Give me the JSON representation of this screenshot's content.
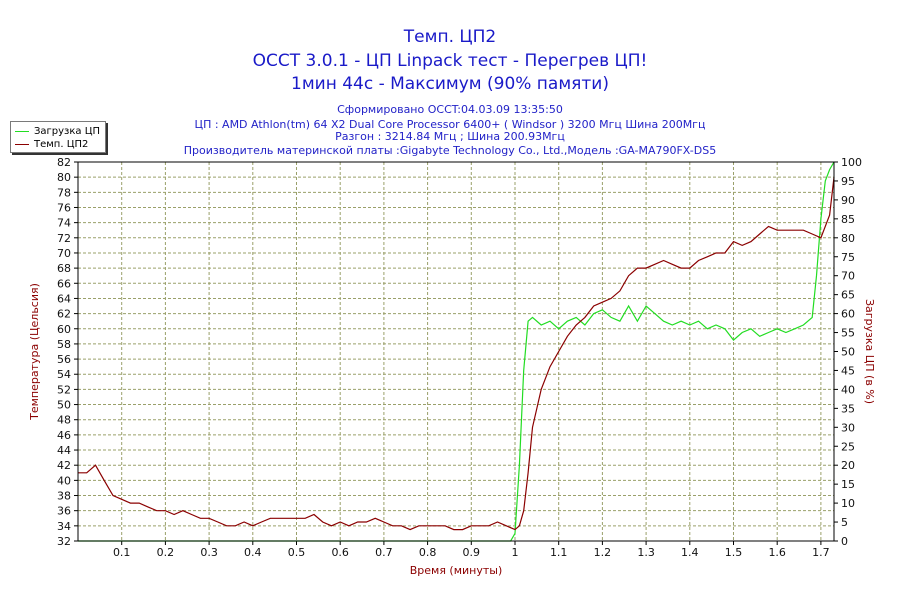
{
  "titles": {
    "line1": "Темп. ЦП2",
    "line2": "OCCT 3.0.1 - ЦП Linpack тест - Перегрев ЦП!",
    "line3": "1мин 44с - Максимум (90% памяти)"
  },
  "subtitles": {
    "generated": "Сформировано OCCT:04.03.09 13:35:50",
    "cpu": "ЦП : AMD Athlon(tm) 64 X2 Dual Core Processor 6400+ ( Windsor ) 3200 Мгц Шина 200Мгц",
    "overclock": "Разгон : 3214.84 Мгц ; Шина 200.93Мгц",
    "motherboard": "Производитель материнской платы :Gigabyte Technology Co., Ltd.,Модель :GA-MA790FX-DS5"
  },
  "colors": {
    "load": "#22dd22",
    "temp": "#8b0000",
    "grid": "#9aa06a",
    "title": "#1a1ac8",
    "axis_label": "#8b0000"
  },
  "chart_data": {
    "type": "line",
    "xlabel": "Время (минуты)",
    "ylabel_left": "Температура (Цельсия)",
    "ylabel_right": "Загрузка ЦП (в %)",
    "xlim": [
      0,
      1.73
    ],
    "ylim_left": [
      32,
      82
    ],
    "ylim_right": [
      0,
      100
    ],
    "x_ticks": [
      0.1,
      0.2,
      0.3,
      0.4,
      0.5,
      0.6,
      0.7,
      0.8,
      0.9,
      1,
      1.1,
      1.2,
      1.3,
      1.4,
      1.5,
      1.6,
      1.7
    ],
    "y_ticks_left": [
      32,
      34,
      36,
      38,
      40,
      42,
      44,
      46,
      48,
      50,
      52,
      54,
      56,
      58,
      60,
      62,
      64,
      66,
      68,
      70,
      72,
      74,
      76,
      78,
      80,
      82
    ],
    "y_ticks_right": [
      0,
      5,
      10,
      15,
      20,
      25,
      30,
      35,
      40,
      45,
      50,
      55,
      60,
      65,
      70,
      75,
      80,
      85,
      90,
      95,
      100
    ],
    "grid": true,
    "legend_position": "top-left",
    "series": [
      {
        "name": "Загрузка ЦП",
        "axis": "right",
        "points": [
          [
            0,
            0
          ],
          [
            0.99,
            0
          ],
          [
            1.0,
            2
          ],
          [
            1.01,
            20
          ],
          [
            1.02,
            45
          ],
          [
            1.03,
            58
          ],
          [
            1.04,
            59
          ],
          [
            1.06,
            57
          ],
          [
            1.08,
            58
          ],
          [
            1.1,
            56
          ],
          [
            1.12,
            58
          ],
          [
            1.14,
            59
          ],
          [
            1.16,
            57
          ],
          [
            1.18,
            60
          ],
          [
            1.2,
            61
          ],
          [
            1.22,
            59
          ],
          [
            1.24,
            58
          ],
          [
            1.26,
            62
          ],
          [
            1.28,
            58
          ],
          [
            1.3,
            62
          ],
          [
            1.32,
            60
          ],
          [
            1.34,
            58
          ],
          [
            1.36,
            57
          ],
          [
            1.38,
            58
          ],
          [
            1.4,
            57
          ],
          [
            1.42,
            58
          ],
          [
            1.44,
            56
          ],
          [
            1.46,
            57
          ],
          [
            1.48,
            56
          ],
          [
            1.5,
            53
          ],
          [
            1.52,
            55
          ],
          [
            1.54,
            56
          ],
          [
            1.56,
            54
          ],
          [
            1.58,
            55
          ],
          [
            1.6,
            56
          ],
          [
            1.62,
            55
          ],
          [
            1.64,
            56
          ],
          [
            1.66,
            57
          ],
          [
            1.68,
            59
          ],
          [
            1.69,
            70
          ],
          [
            1.7,
            85
          ],
          [
            1.71,
            95
          ],
          [
            1.72,
            98
          ],
          [
            1.73,
            100
          ]
        ]
      },
      {
        "name": "Темп. ЦП2",
        "axis": "left",
        "points": [
          [
            0,
            41
          ],
          [
            0.02,
            41
          ],
          [
            0.04,
            42
          ],
          [
            0.06,
            40
          ],
          [
            0.08,
            38
          ],
          [
            0.1,
            37.5
          ],
          [
            0.12,
            37
          ],
          [
            0.14,
            37
          ],
          [
            0.16,
            36.5
          ],
          [
            0.18,
            36
          ],
          [
            0.2,
            36
          ],
          [
            0.22,
            35.5
          ],
          [
            0.24,
            36
          ],
          [
            0.26,
            35.5
          ],
          [
            0.28,
            35
          ],
          [
            0.3,
            35
          ],
          [
            0.32,
            34.5
          ],
          [
            0.34,
            34
          ],
          [
            0.36,
            34
          ],
          [
            0.38,
            34.5
          ],
          [
            0.4,
            34
          ],
          [
            0.42,
            34.5
          ],
          [
            0.44,
            35
          ],
          [
            0.46,
            35
          ],
          [
            0.48,
            35
          ],
          [
            0.5,
            35
          ],
          [
            0.52,
            35
          ],
          [
            0.54,
            35.5
          ],
          [
            0.56,
            34.5
          ],
          [
            0.58,
            34
          ],
          [
            0.6,
            34.5
          ],
          [
            0.62,
            34
          ],
          [
            0.64,
            34.5
          ],
          [
            0.66,
            34.5
          ],
          [
            0.68,
            35
          ],
          [
            0.7,
            34.5
          ],
          [
            0.72,
            34
          ],
          [
            0.74,
            34
          ],
          [
            0.76,
            33.5
          ],
          [
            0.78,
            34
          ],
          [
            0.8,
            34
          ],
          [
            0.82,
            34
          ],
          [
            0.84,
            34
          ],
          [
            0.86,
            33.5
          ],
          [
            0.88,
            33.5
          ],
          [
            0.9,
            34
          ],
          [
            0.92,
            34
          ],
          [
            0.94,
            34
          ],
          [
            0.96,
            34.5
          ],
          [
            0.98,
            34
          ],
          [
            1.0,
            33.5
          ],
          [
            1.01,
            34
          ],
          [
            1.02,
            36
          ],
          [
            1.03,
            41
          ],
          [
            1.04,
            47
          ],
          [
            1.06,
            52
          ],
          [
            1.08,
            55
          ],
          [
            1.1,
            57
          ],
          [
            1.12,
            59
          ],
          [
            1.14,
            60.5
          ],
          [
            1.16,
            61.5
          ],
          [
            1.18,
            63
          ],
          [
            1.2,
            63.5
          ],
          [
            1.22,
            64
          ],
          [
            1.24,
            65
          ],
          [
            1.26,
            67
          ],
          [
            1.28,
            68
          ],
          [
            1.3,
            68
          ],
          [
            1.32,
            68.5
          ],
          [
            1.34,
            69
          ],
          [
            1.36,
            68.5
          ],
          [
            1.38,
            68
          ],
          [
            1.4,
            68
          ],
          [
            1.42,
            69
          ],
          [
            1.44,
            69.5
          ],
          [
            1.46,
            70
          ],
          [
            1.48,
            70
          ],
          [
            1.5,
            71.5
          ],
          [
            1.52,
            71
          ],
          [
            1.54,
            71.5
          ],
          [
            1.56,
            72.5
          ],
          [
            1.58,
            73.5
          ],
          [
            1.6,
            73
          ],
          [
            1.62,
            73
          ],
          [
            1.64,
            73
          ],
          [
            1.66,
            73
          ],
          [
            1.68,
            72.5
          ],
          [
            1.7,
            72
          ],
          [
            1.72,
            75
          ],
          [
            1.73,
            80
          ]
        ]
      }
    ]
  }
}
